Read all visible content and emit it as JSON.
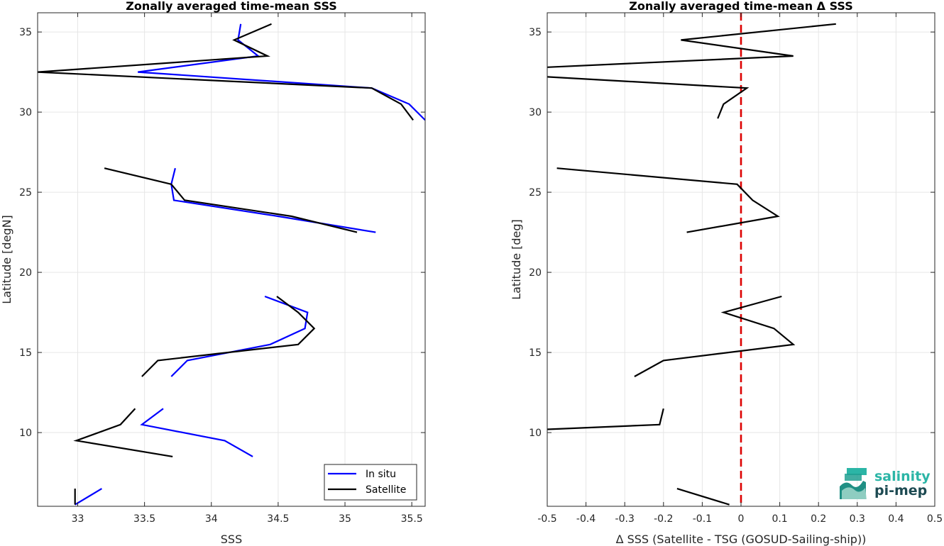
{
  "chart_data": [
    {
      "type": "line",
      "title": "Zonally averaged time-mean SSS",
      "xlabel": "SSS",
      "ylabel": "Latitude [degN]",
      "xlim": [
        32.7,
        35.6
      ],
      "ylim": [
        5.4,
        36.2
      ],
      "xticks": [
        33,
        33.5,
        34,
        34.5,
        35,
        35.5
      ],
      "xtick_labels": [
        "33",
        "33.5",
        "34",
        "34.5",
        "35",
        "35.5"
      ],
      "yticks": [
        10,
        15,
        20,
        25,
        30,
        35
      ],
      "ytick_labels": [
        "10",
        "15",
        "20",
        "25",
        "30",
        "35"
      ],
      "grid": true,
      "legend_position": "bottom-right",
      "series": [
        {
          "name": "In situ",
          "color": "#0000ff",
          "segments": [
            [
              [
                34.22,
                35.5
              ],
              [
                34.2,
                34.5
              ],
              [
                34.35,
                33.5
              ],
              [
                33.45,
                32.5
              ],
              [
                35.2,
                31.5
              ],
              [
                35.48,
                30.5
              ],
              [
                35.6,
                29.5
              ]
            ],
            [
              [
                33.73,
                26.5
              ],
              [
                33.7,
                25.5
              ],
              [
                33.72,
                24.5
              ],
              [
                34.5,
                23.5
              ],
              [
                35.23,
                22.5
              ]
            ],
            [
              [
                34.4,
                18.5
              ],
              [
                34.72,
                17.5
              ],
              [
                34.7,
                16.5
              ],
              [
                34.44,
                15.5
              ],
              [
                33.82,
                14.5
              ],
              [
                33.7,
                13.5
              ]
            ],
            [
              [
                33.64,
                11.5
              ],
              [
                33.48,
                10.5
              ],
              [
                34.1,
                9.5
              ],
              [
                34.31,
                8.5
              ]
            ],
            [
              [
                33.18,
                6.5
              ],
              [
                32.98,
                5.5
              ]
            ]
          ]
        },
        {
          "name": "Satellite",
          "color": "#000000",
          "segments": [
            [
              [
                34.45,
                35.5
              ],
              [
                34.17,
                34.5
              ],
              [
                34.42,
                33.5
              ],
              [
                32.7,
                32.5
              ],
              [
                35.2,
                31.5
              ],
              [
                35.42,
                30.5
              ],
              [
                35.51,
                29.5
              ]
            ],
            [
              [
                33.2,
                26.5
              ],
              [
                33.7,
                25.5
              ],
              [
                33.8,
                24.5
              ],
              [
                34.6,
                23.5
              ],
              [
                35.09,
                22.5
              ]
            ],
            [
              [
                34.49,
                18.5
              ],
              [
                34.65,
                17.5
              ],
              [
                34.77,
                16.5
              ],
              [
                34.65,
                15.5
              ],
              [
                33.6,
                14.5
              ],
              [
                33.48,
                13.5
              ]
            ],
            [
              [
                33.43,
                11.5
              ],
              [
                33.32,
                10.5
              ],
              [
                32.99,
                9.5
              ],
              [
                33.71,
                8.5
              ]
            ],
            [
              [
                32.98,
                6.5
              ],
              [
                32.98,
                5.5
              ]
            ]
          ]
        }
      ]
    },
    {
      "type": "line",
      "title": "Zonally averaged time-mean Δ SSS",
      "xlabel": "Δ SSS (Satellite - TSG (GOSUD-Sailing-ship))",
      "ylabel": "Latitude [deg]",
      "xlim": [
        -0.5,
        0.5
      ],
      "ylim": [
        5.4,
        36.2
      ],
      "xticks": [
        -0.5,
        -0.4,
        -0.3,
        -0.2,
        -0.1,
        0,
        0.1,
        0.2,
        0.3,
        0.4,
        0.5
      ],
      "xtick_labels": [
        "-0.5",
        "-0.4",
        "-0.3",
        "-0.2",
        "-0.1",
        "0",
        "0.1",
        "0.2",
        "0.3",
        "0.4",
        "0.5"
      ],
      "yticks": [
        10,
        15,
        20,
        25,
        30,
        35
      ],
      "ytick_labels": [
        "10",
        "15",
        "20",
        "25",
        "30",
        "35"
      ],
      "grid": true,
      "reference_line": {
        "x": 0,
        "color": "#dd0000",
        "style": "dashed"
      },
      "series": [
        {
          "color": "#000000",
          "segments": [
            [
              [
                0.245,
                35.5
              ],
              [
                -0.155,
                34.5
              ],
              [
                0.135,
                33.5
              ],
              [
                -0.5,
                32.8
              ]
            ],
            [
              [
                -0.5,
                32.2
              ],
              [
                0.015,
                31.5
              ],
              [
                -0.045,
                30.5
              ],
              [
                -0.06,
                29.6
              ]
            ],
            [
              [
                -0.475,
                26.5
              ],
              [
                -0.01,
                25.5
              ],
              [
                0.03,
                24.5
              ],
              [
                0.095,
                23.5
              ],
              [
                -0.14,
                22.5
              ]
            ],
            [
              [
                0.105,
                18.5
              ],
              [
                -0.045,
                17.5
              ],
              [
                0.085,
                16.5
              ],
              [
                0.135,
                15.5
              ],
              [
                -0.2,
                14.5
              ],
              [
                -0.275,
                13.5
              ]
            ],
            [
              [
                -0.2,
                11.5
              ],
              [
                -0.21,
                10.5
              ],
              [
                -0.5,
                10.2
              ]
            ],
            [
              [
                -0.165,
                6.5
              ],
              [
                -0.03,
                5.5
              ]
            ]
          ]
        }
      ]
    }
  ],
  "logo": {
    "line1": "salinity",
    "line2": "pi-mep",
    "color1": "#2bb5a6",
    "color2": "#1d4a52"
  }
}
